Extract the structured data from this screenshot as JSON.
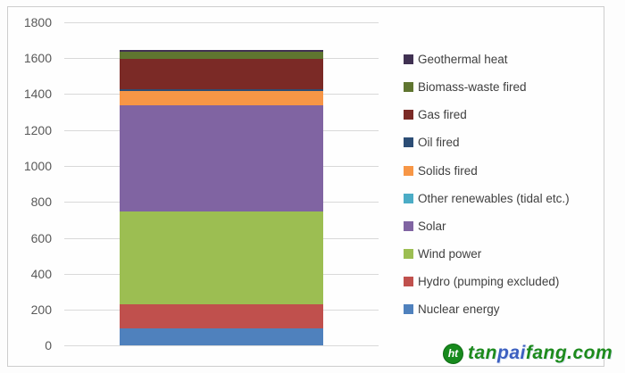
{
  "chart_data": {
    "type": "bar",
    "stacked": true,
    "title": "",
    "xlabel": "",
    "ylabel": "",
    "categories": [
      ""
    ],
    "ylim": [
      0,
      1800
    ],
    "ytick_step": 200,
    "yticks": [
      0,
      200,
      400,
      600,
      800,
      1000,
      1200,
      1400,
      1600,
      1800
    ],
    "grid": true,
    "gridline_color": "#d9d9d9",
    "legend_position": "right",
    "legend_order": "top-of-stack-first",
    "series": [
      {
        "name": "Nuclear energy",
        "color": "#4F81BD",
        "values": [
          95
        ]
      },
      {
        "name": "Hydro (pumping excluded)",
        "color": "#C0504D",
        "values": [
          135
        ]
      },
      {
        "name": "Wind power",
        "color": "#9CBE52",
        "values": [
          515
        ]
      },
      {
        "name": "Solar",
        "color": "#8064A2",
        "values": [
          590
        ]
      },
      {
        "name": "Other renewables (tidal etc.)",
        "color": "#4BACC6",
        "values": [
          0
        ]
      },
      {
        "name": "Solids fired",
        "color": "#F79646",
        "values": [
          80
        ]
      },
      {
        "name": "Oil fired",
        "color": "#2C4D75",
        "values": [
          10
        ]
      },
      {
        "name": "Gas fired",
        "color": "#7B2A26",
        "values": [
          170
        ]
      },
      {
        "name": "Biomass-waste fired",
        "color": "#5F7530",
        "values": [
          40
        ]
      },
      {
        "name": "Geothermal heat",
        "color": "#403152",
        "values": [
          8
        ]
      }
    ]
  },
  "axis": {
    "label_color": "#595959"
  },
  "legend": {
    "text_color": "#404040"
  },
  "watermark": {
    "icon": "tanpaifang-logo-icon",
    "icon_text": "ht",
    "text_parts": [
      {
        "text": "tan",
        "color": "#1c8a1c"
      },
      {
        "text": "pai",
        "color": "#3b5fc0"
      },
      {
        "text": "fang.com",
        "color": "#1c8a1c"
      }
    ]
  }
}
